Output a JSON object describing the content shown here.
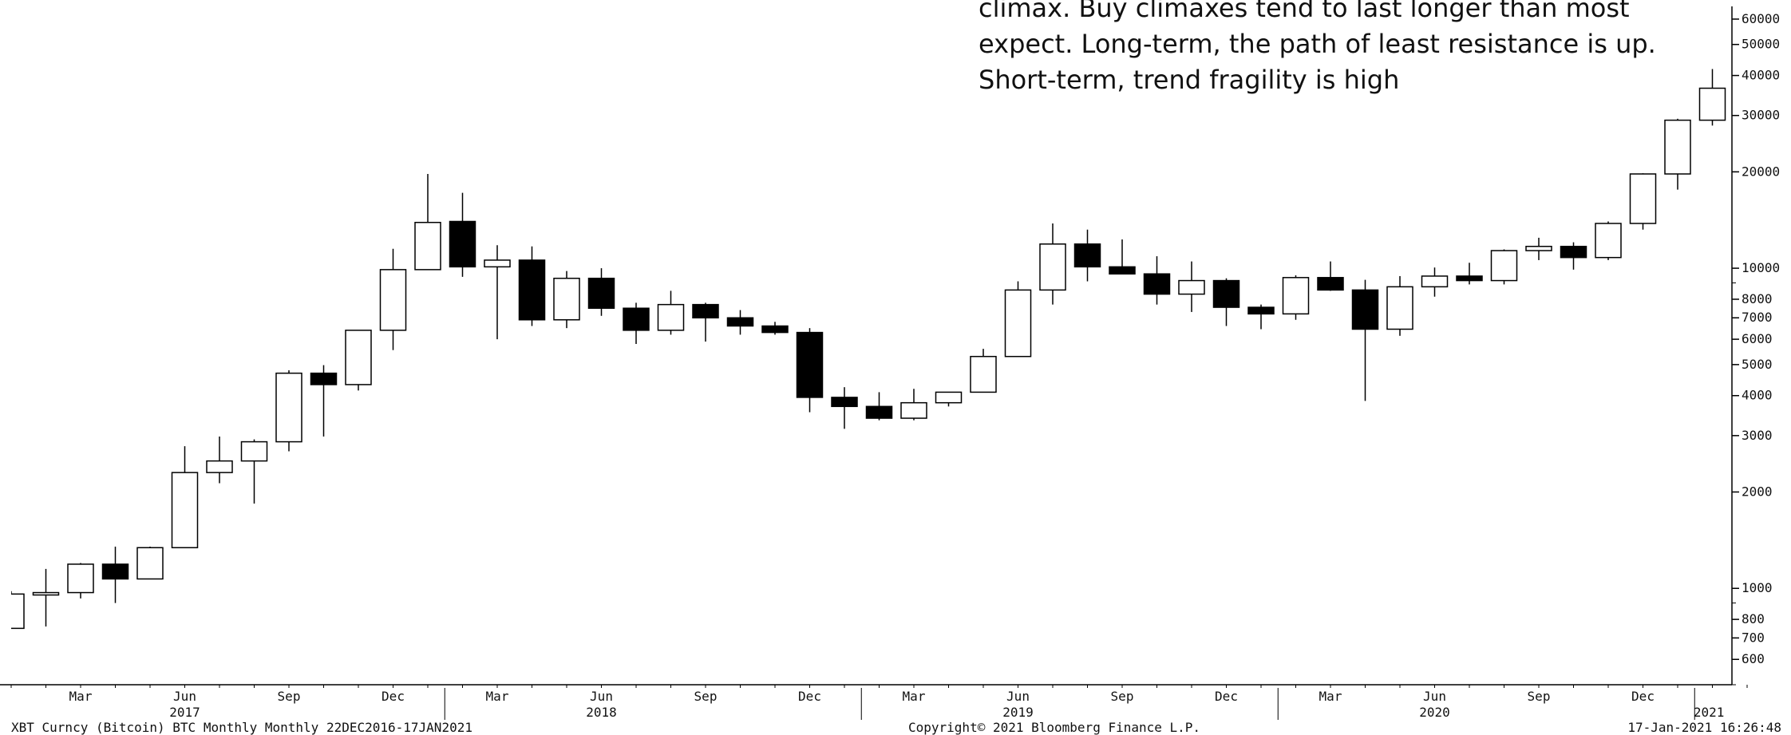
{
  "annotation": {
    "lines": [
      "climax. Buy climaxes tend to last longer than most",
      "expect. Long-term, the path of least resistance is up.",
      "Short-term, trend fragility is high"
    ]
  },
  "footer": {
    "left": "XBT Curncy (Bitcoin) BTC Monthly  Monthly 22DEC2016-17JAN2021",
    "center": "Copyright© 2021 Bloomberg Finance L.P.",
    "right": "17-Jan-2021 16:26:48"
  },
  "chart_data": {
    "type": "candlestick",
    "y_scale": "log",
    "ylim": [
      500,
      65000
    ],
    "y_ticks": [
      600,
      700,
      800,
      1000,
      2000,
      3000,
      4000,
      5000,
      6000,
      7000,
      8000,
      10000,
      20000,
      30000,
      40000,
      50000,
      60000
    ],
    "x_month_ticks": [
      {
        "index": 2,
        "label": "Mar"
      },
      {
        "index": 5,
        "label": "Jun"
      },
      {
        "index": 8,
        "label": "Sep"
      },
      {
        "index": 11,
        "label": "Dec"
      },
      {
        "index": 14,
        "label": "Mar"
      },
      {
        "index": 17,
        "label": "Jun"
      },
      {
        "index": 20,
        "label": "Sep"
      },
      {
        "index": 23,
        "label": "Dec"
      },
      {
        "index": 26,
        "label": "Mar"
      },
      {
        "index": 29,
        "label": "Jun"
      },
      {
        "index": 32,
        "label": "Sep"
      },
      {
        "index": 35,
        "label": "Dec"
      },
      {
        "index": 38,
        "label": "Mar"
      },
      {
        "index": 41,
        "label": "Jun"
      },
      {
        "index": 44,
        "label": "Sep"
      },
      {
        "index": 47,
        "label": "Dec"
      }
    ],
    "x_year_ticks": [
      {
        "index": 5,
        "label": "2017"
      },
      {
        "index": 17,
        "label": "2018"
      },
      {
        "index": 29,
        "label": "2019"
      },
      {
        "index": 41,
        "label": "2020"
      },
      {
        "index": 48.9,
        "label": "2021"
      }
    ],
    "candles": [
      {
        "month": "2016-12",
        "open": 750,
        "high": 980,
        "low": 750,
        "close": 960
      },
      {
        "month": "2017-01",
        "open": 960,
        "high": 1150,
        "low": 760,
        "close": 970
      },
      {
        "month": "2017-02",
        "open": 970,
        "high": 1200,
        "low": 930,
        "close": 1190
      },
      {
        "month": "2017-03",
        "open": 1190,
        "high": 1350,
        "low": 900,
        "close": 1070
      },
      {
        "month": "2017-04",
        "open": 1070,
        "high": 1350,
        "low": 1070,
        "close": 1340
      },
      {
        "month": "2017-05",
        "open": 1340,
        "high": 2780,
        "low": 1340,
        "close": 2300
      },
      {
        "month": "2017-06",
        "open": 2300,
        "high": 2980,
        "low": 2130,
        "close": 2500
      },
      {
        "month": "2017-07",
        "open": 2500,
        "high": 2920,
        "low": 1840,
        "close": 2870
      },
      {
        "month": "2017-08",
        "open": 2870,
        "high": 4800,
        "low": 2680,
        "close": 4700
      },
      {
        "month": "2017-09",
        "open": 4700,
        "high": 4980,
        "low": 2980,
        "close": 4330
      },
      {
        "month": "2017-10",
        "open": 4330,
        "high": 6400,
        "low": 4150,
        "close": 6400
      },
      {
        "month": "2017-11",
        "open": 6400,
        "high": 11500,
        "low": 5550,
        "close": 9900
      },
      {
        "month": "2017-12",
        "open": 9900,
        "high": 19700,
        "low": 9900,
        "close": 13900
      },
      {
        "month": "2018-01",
        "open": 14000,
        "high": 17200,
        "low": 9400,
        "close": 10100
      },
      {
        "month": "2018-02",
        "open": 10100,
        "high": 11800,
        "low": 6000,
        "close": 10600
      },
      {
        "month": "2018-03",
        "open": 10600,
        "high": 11700,
        "low": 6600,
        "close": 6900
      },
      {
        "month": "2018-04",
        "open": 6900,
        "high": 9800,
        "low": 6500,
        "close": 9300
      },
      {
        "month": "2018-05",
        "open": 9300,
        "high": 10000,
        "low": 7100,
        "close": 7500
      },
      {
        "month": "2018-06",
        "open": 7500,
        "high": 7800,
        "low": 5800,
        "close": 6400
      },
      {
        "month": "2018-07",
        "open": 6400,
        "high": 8500,
        "low": 6200,
        "close": 7700
      },
      {
        "month": "2018-08",
        "open": 7700,
        "high": 7800,
        "low": 5900,
        "close": 7000
      },
      {
        "month": "2018-09",
        "open": 7000,
        "high": 7400,
        "low": 6200,
        "close": 6600
      },
      {
        "month": "2018-10",
        "open": 6600,
        "high": 6800,
        "low": 6200,
        "close": 6300
      },
      {
        "month": "2018-11",
        "open": 6300,
        "high": 6500,
        "low": 3550,
        "close": 3950
      },
      {
        "month": "2018-12",
        "open": 3950,
        "high": 4250,
        "low": 3150,
        "close": 3700
      },
      {
        "month": "2019-01",
        "open": 3700,
        "high": 4100,
        "low": 3350,
        "close": 3400
      },
      {
        "month": "2019-02",
        "open": 3400,
        "high": 4200,
        "low": 3350,
        "close": 3800
      },
      {
        "month": "2019-03",
        "open": 3800,
        "high": 4100,
        "low": 3700,
        "close": 4100
      },
      {
        "month": "2019-04",
        "open": 4100,
        "high": 5600,
        "low": 4100,
        "close": 5300
      },
      {
        "month": "2019-05",
        "open": 5300,
        "high": 9100,
        "low": 5300,
        "close": 8550
      },
      {
        "month": "2019-06",
        "open": 8550,
        "high": 13800,
        "low": 7700,
        "close": 11900
      },
      {
        "month": "2019-07",
        "open": 11900,
        "high": 13200,
        "low": 9100,
        "close": 10100
      },
      {
        "month": "2019-08",
        "open": 10100,
        "high": 12300,
        "low": 9600,
        "close": 9600
      },
      {
        "month": "2019-09",
        "open": 9600,
        "high": 10900,
        "low": 7700,
        "close": 8300
      },
      {
        "month": "2019-10",
        "open": 8300,
        "high": 10500,
        "low": 7300,
        "close": 9150
      },
      {
        "month": "2019-11",
        "open": 9150,
        "high": 9300,
        "low": 6600,
        "close": 7550
      },
      {
        "month": "2019-12",
        "open": 7550,
        "high": 7700,
        "low": 6450,
        "close": 7200
      },
      {
        "month": "2020-01",
        "open": 7200,
        "high": 9500,
        "low": 6900,
        "close": 9350
      },
      {
        "month": "2020-02",
        "open": 9350,
        "high": 10500,
        "low": 8500,
        "close": 8550
      },
      {
        "month": "2020-03",
        "open": 8550,
        "high": 9200,
        "low": 3850,
        "close": 6450
      },
      {
        "month": "2020-04",
        "open": 6450,
        "high": 9450,
        "low": 6150,
        "close": 8750
      },
      {
        "month": "2020-05",
        "open": 8750,
        "high": 10050,
        "low": 8150,
        "close": 9450
      },
      {
        "month": "2020-06",
        "open": 9450,
        "high": 10400,
        "low": 8900,
        "close": 9150
      },
      {
        "month": "2020-07",
        "open": 9150,
        "high": 11450,
        "low": 8900,
        "close": 11350
      },
      {
        "month": "2020-08",
        "open": 11350,
        "high": 12450,
        "low": 10600,
        "close": 11700
      },
      {
        "month": "2020-09",
        "open": 11700,
        "high": 12050,
        "low": 9900,
        "close": 10800
      },
      {
        "month": "2020-10",
        "open": 10800,
        "high": 14000,
        "low": 10600,
        "close": 13800
      },
      {
        "month": "2020-11",
        "open": 13800,
        "high": 19800,
        "low": 13200,
        "close": 19700
      },
      {
        "month": "2020-12",
        "open": 19700,
        "high": 29300,
        "low": 17600,
        "close": 29000
      },
      {
        "month": "2021-01",
        "open": 29000,
        "high": 41900,
        "low": 27900,
        "close": 36500
      }
    ]
  }
}
